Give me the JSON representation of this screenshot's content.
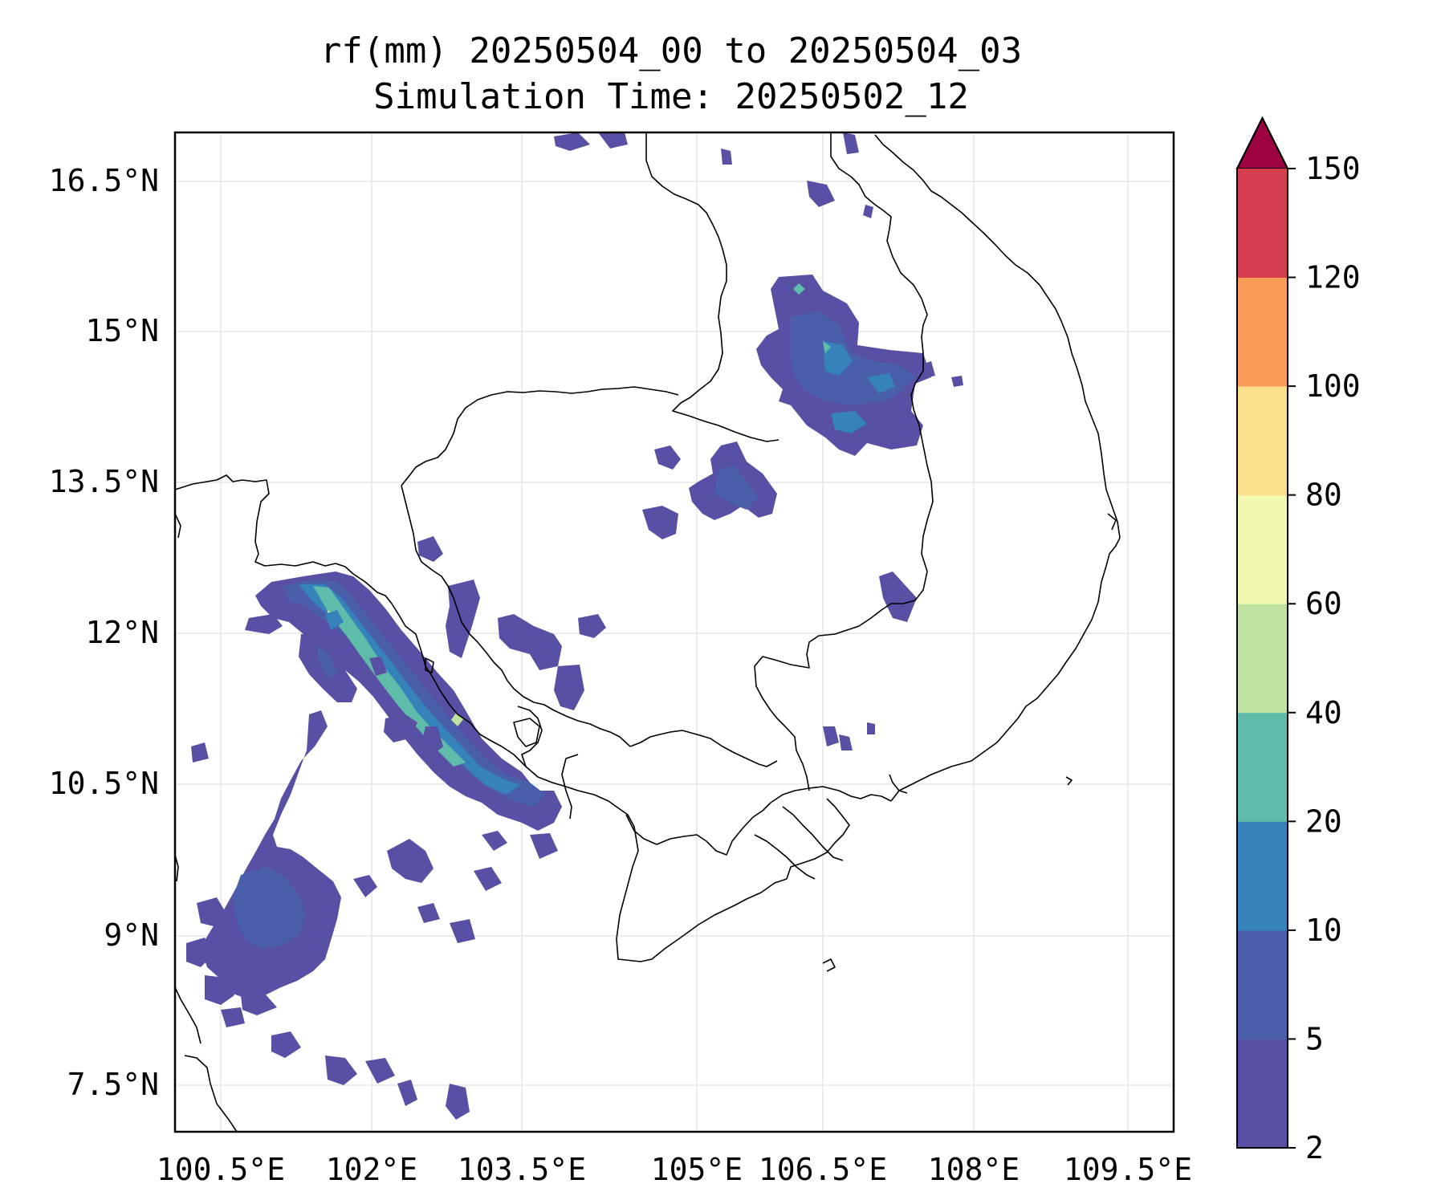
{
  "title": {
    "line1": "rf(mm) 20250504_00 to 20250504_03",
    "line2": "Simulation Time: 20250502_12"
  },
  "map": {
    "x_ticks": [
      "100.5°E",
      "102°E",
      "103.5°E",
      "105°E",
      "106.5°E",
      "108°E",
      "109.5°E"
    ],
    "y_ticks": [
      "16.5°N",
      "15°N",
      "13.5°N",
      "12°N",
      "10.5°N",
      "9°N",
      "7.5°N"
    ]
  },
  "colorbar": {
    "label_values": [
      "150",
      "120",
      "100",
      "80",
      "60",
      "40",
      "20",
      "10",
      "5",
      "2"
    ],
    "colors": [
      "#5850a4",
      "#4a5fac",
      "#3682ba",
      "#5fbbaa",
      "#bfe2a0",
      "#f2f9ae",
      "#fcdf8a",
      "#f99c5a",
      "#d53e4f"
    ],
    "extend_color": "#9e0142"
  }
}
